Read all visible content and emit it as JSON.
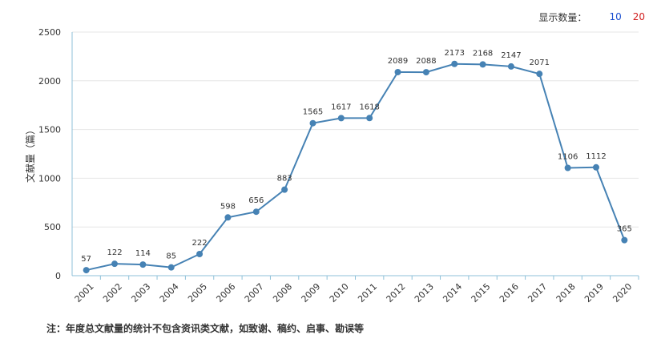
{
  "controls": {
    "display_label": "显示数量：",
    "option_10": "10",
    "option_20": "20",
    "colors": {
      "option_10": "#1a4fd0",
      "option_20": "#d22020"
    }
  },
  "note": "注：年度总文献量的统计不包含资讯类文献，如致谢、稿约、启事、勘误等",
  "chart_data": {
    "type": "line",
    "ylabel": "文献量（篇）",
    "xlabel": "",
    "ylim": [
      0,
      2500
    ],
    "yticks": [
      0,
      500,
      1000,
      1500,
      2000,
      2500
    ],
    "grid": true,
    "color": "#4682b4",
    "categories": [
      "2001",
      "2002",
      "2003",
      "2004",
      "2005",
      "2006",
      "2007",
      "2008",
      "2009",
      "2010",
      "2011",
      "2012",
      "2013",
      "2014",
      "2015",
      "2016",
      "2017",
      "2018",
      "2019",
      "2020"
    ],
    "values": [
      57,
      122,
      114,
      85,
      222,
      598,
      656,
      883,
      1565,
      1617,
      1618,
      2089,
      2088,
      2173,
      2168,
      2147,
      2071,
      1106,
      1112,
      365
    ],
    "data_labels": [
      "57",
      "122",
      "114",
      "85",
      "222",
      "598",
      "656",
      "883",
      "1565",
      "1617",
      "1618",
      "2089",
      "2088",
      "2173",
      "2168",
      "2147",
      "2071",
      "1106",
      "1112",
      "365"
    ]
  }
}
